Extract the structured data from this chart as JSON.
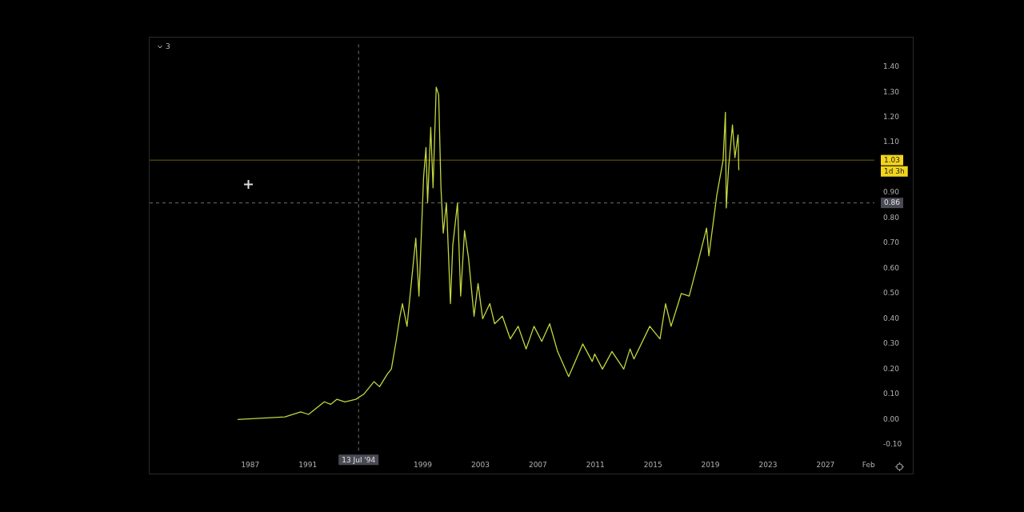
{
  "chart_data": {
    "type": "line",
    "marker": "none",
    "line_style": "solid",
    "legend": false,
    "xlim": [
      1980,
      2030.4
    ],
    "xticks": [
      1987,
      1991,
      1999,
      2003,
      2007,
      2011,
      2015,
      2019,
      2023,
      2027,
      {
        "value": 2030,
        "label": "Feb"
      }
    ],
    "ylim": [
      -0.13,
      1.49
    ],
    "yticks": [
      {
        "value": -0.1,
        "label": "-0.10"
      },
      {
        "value": 0,
        "label": "0.00"
      },
      {
        "value": 0.1,
        "label": "0.10"
      },
      {
        "value": 0.2,
        "label": "0.20"
      },
      {
        "value": 0.3,
        "label": "0.30"
      },
      {
        "value": 0.4,
        "label": "0.40"
      },
      {
        "value": 0.5,
        "label": "0.50"
      },
      {
        "value": 0.6,
        "label": "0.60"
      },
      {
        "value": 0.7,
        "label": "0.70"
      },
      {
        "value": 0.8,
        "label": "0.80"
      },
      {
        "value": 0.9,
        "label": "0.90"
      },
      {
        "value": 1.1,
        "label": "1.10"
      },
      {
        "value": 1.2,
        "label": "1.20"
      },
      {
        "value": 1.3,
        "label": "1.30"
      },
      {
        "value": 1.4,
        "label": "1.40"
      }
    ],
    "x": [
      1986.12,
      1989.41,
      1990.51,
      1991.05,
      1992.15,
      1992.59,
      1993.03,
      1993.58,
      1994.34,
      1994.89,
      1995.6,
      1995.99,
      1996.53,
      1996.81,
      1997.14,
      1997.41,
      1997.58,
      1997.9,
      1998.23,
      1998.51,
      1998.73,
      1999.05,
      1999.22,
      1999.33,
      1999.55,
      1999.71,
      1999.93,
      2000.1,
      2000.26,
      2000.42,
      2000.64,
      2000.92,
      2001.08,
      2001.41,
      2001.63,
      2001.9,
      2002.18,
      2002.56,
      2002.84,
      2003.16,
      2003.66,
      2003.99,
      2004.53,
      2005.08,
      2005.63,
      2006.18,
      2006.73,
      2007.27,
      2007.82,
      2008.37,
      2009.14,
      2010.12,
      2010.78,
      2010.95,
      2011.49,
      2012.15,
      2012.97,
      2013.41,
      2013.68,
      2014.78,
      2015.49,
      2015.88,
      2016.26,
      2016.97,
      2017.52,
      2018.07,
      2018.73,
      2018.89,
      2019.44,
      2019.88,
      2020.04,
      2020.1,
      2020.26,
      2020.53,
      2020.7,
      2020.92,
      2020.97
    ],
    "series": [
      {
        "color": "#c3d63c",
        "values": [
          0.0,
          0.01,
          0.03,
          0.02,
          0.07,
          0.06,
          0.08,
          0.07,
          0.08,
          0.1,
          0.15,
          0.13,
          0.18,
          0.2,
          0.31,
          0.41,
          0.46,
          0.37,
          0.56,
          0.72,
          0.49,
          0.96,
          1.08,
          0.86,
          1.16,
          0.92,
          1.32,
          1.29,
          0.92,
          0.74,
          0.86,
          0.46,
          0.69,
          0.86,
          0.49,
          0.75,
          0.64,
          0.41,
          0.54,
          0.4,
          0.46,
          0.38,
          0.41,
          0.32,
          0.37,
          0.28,
          0.37,
          0.31,
          0.38,
          0.27,
          0.17,
          0.3,
          0.23,
          0.26,
          0.2,
          0.27,
          0.2,
          0.28,
          0.24,
          0.37,
          0.32,
          0.46,
          0.37,
          0.5,
          0.49,
          0.61,
          0.76,
          0.65,
          0.89,
          1.03,
          1.22,
          0.84,
          1.0,
          1.17,
          1.04,
          1.13,
          0.99
        ]
      }
    ],
    "ref_lines": [
      {
        "axis": "y",
        "value": 1.03,
        "label": "1.03",
        "color": "#f2d41c",
        "line_style": "solid"
      },
      {
        "axis": "y",
        "value": 0.86,
        "label": "0.86",
        "color": "#8a8a8a",
        "line_style": "dashed"
      },
      {
        "axis": "x",
        "value": 1994.53,
        "label": "13 Jul '94",
        "color": "#8a8a8a",
        "line_style": "dashed"
      }
    ],
    "annotations": [
      "3",
      "1d 3h"
    ]
  }
}
